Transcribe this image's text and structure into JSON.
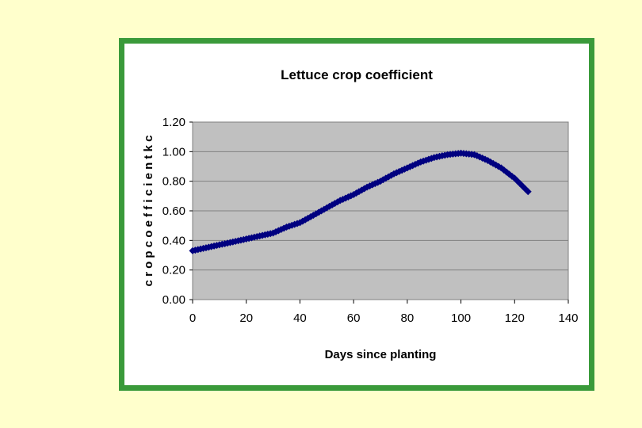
{
  "chart_data": {
    "type": "line",
    "title": "Lettuce crop coefficient",
    "xlabel": "Days since planting",
    "ylabel": "c r o p  c o e f f i c i e n t  k c",
    "xlim": [
      0,
      140
    ],
    "ylim": [
      0,
      1.2
    ],
    "x_ticks": [
      "0",
      "20",
      "40",
      "60",
      "80",
      "100",
      "120",
      "140"
    ],
    "y_ticks": [
      "0.00",
      "0.20",
      "0.40",
      "0.60",
      "0.80",
      "1.00",
      "1.20"
    ],
    "grid": "horizontal",
    "legend": "none",
    "series": [
      {
        "color": "#000080",
        "marker": "diamond",
        "x": [
          0,
          5,
          10,
          15,
          20,
          25,
          30,
          35,
          40,
          45,
          50,
          55,
          60,
          65,
          70,
          75,
          80,
          85,
          90,
          95,
          100,
          105,
          110,
          115,
          120,
          125
        ],
        "y": [
          0.33,
          0.35,
          0.37,
          0.39,
          0.41,
          0.43,
          0.45,
          0.49,
          0.52,
          0.57,
          0.62,
          0.67,
          0.71,
          0.76,
          0.8,
          0.85,
          0.89,
          0.93,
          0.96,
          0.98,
          0.99,
          0.98,
          0.94,
          0.89,
          0.82,
          0.73
        ]
      }
    ]
  },
  "colors": {
    "page_background": "#FFFFCC",
    "frame_border": "#3A9A3A",
    "plot_background": "#C0C0C0",
    "series_line": "#000080"
  }
}
